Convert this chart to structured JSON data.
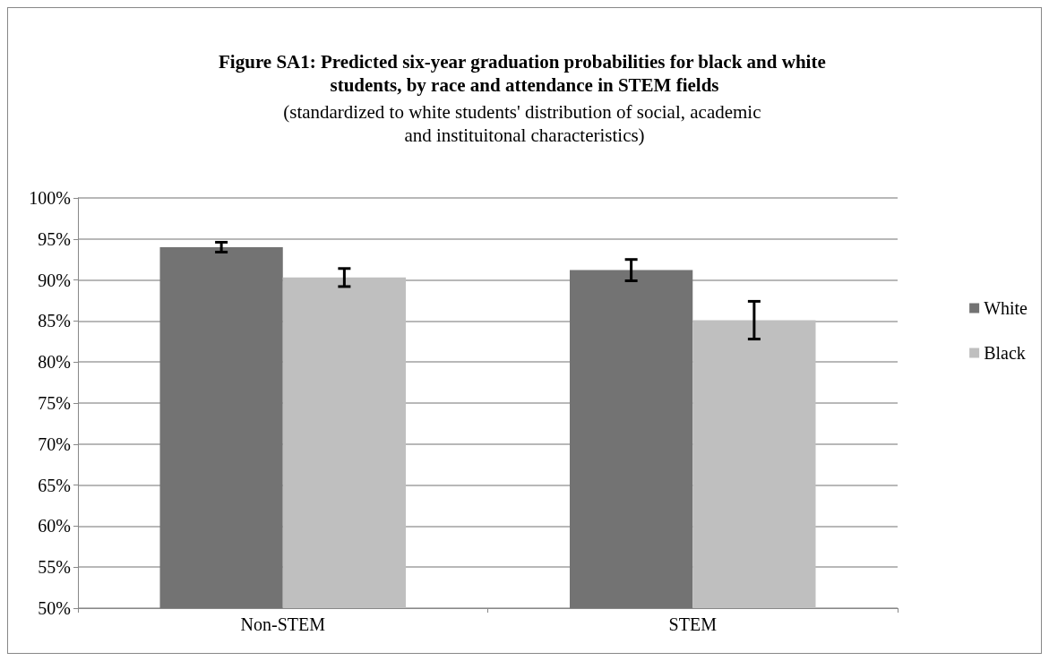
{
  "chart_data": {
    "type": "bar",
    "title": "Figure SA1: Predicted six-year graduation probabilities for black and white students, by race and attendance in STEM fields",
    "subtitle": "(standardized to white students' distribution of social, academic and instituitonal characteristics)",
    "categories": [
      "Non-STEM",
      "STEM"
    ],
    "series": [
      {
        "name": "White",
        "color": "#737373",
        "values": [
          94.0,
          91.2
        ],
        "errors": [
          0.6,
          1.3
        ]
      },
      {
        "name": "Black",
        "color": "#bfbfbf",
        "values": [
          90.3,
          85.1
        ],
        "errors": [
          1.1,
          2.3
        ]
      }
    ],
    "ylim": [
      50,
      100
    ],
    "yticks": [
      {
        "value": 50,
        "label": "50%"
      },
      {
        "value": 55,
        "label": "55%"
      },
      {
        "value": 60,
        "label": "60%"
      },
      {
        "value": 65,
        "label": "65%"
      },
      {
        "value": 70,
        "label": "70%"
      },
      {
        "value": 75,
        "label": "75%"
      },
      {
        "value": 80,
        "label": "80%"
      },
      {
        "value": 85,
        "label": "85%"
      },
      {
        "value": 90,
        "label": "90%"
      },
      {
        "value": 95,
        "label": "95%"
      },
      {
        "value": 100,
        "label": "100%"
      }
    ],
    "grid": "y",
    "legend": "right"
  }
}
